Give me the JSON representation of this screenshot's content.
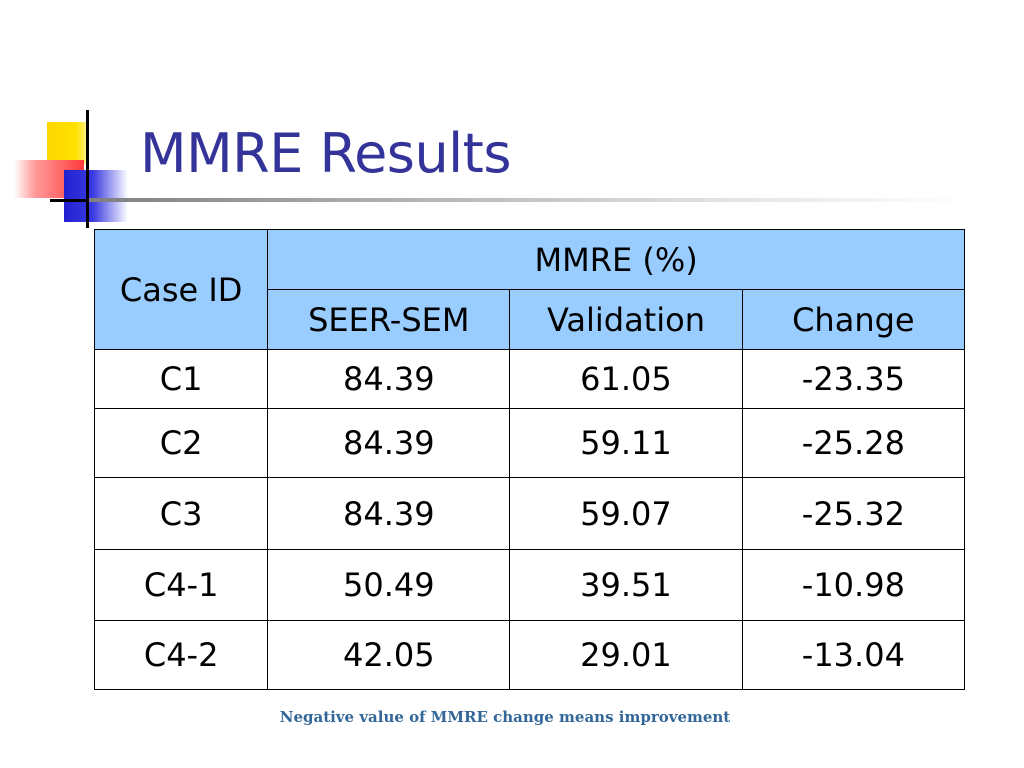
{
  "slide": {
    "title": "MMRE Results",
    "footnote": "Negative value of MMRE change means improvement"
  },
  "table": {
    "case_header": "Case ID",
    "group_header": "MMRE (%)",
    "columns": [
      "SEER-SEM",
      "Validation",
      "Change"
    ],
    "rows": [
      {
        "case": "C1",
        "seer_sem": "84.39",
        "validation": "61.05",
        "change": "-23.35"
      },
      {
        "case": "C2",
        "seer_sem": "84.39",
        "validation": "59.11",
        "change": "-25.28"
      },
      {
        "case": "C3",
        "seer_sem": "84.39",
        "validation": "59.07",
        "change": "-25.32"
      },
      {
        "case": "C4-1",
        "seer_sem": "50.49",
        "validation": "39.51",
        "change": "-10.98"
      },
      {
        "case": "C4-2",
        "seer_sem": "42.05",
        "validation": "29.01",
        "change": "-13.04"
      }
    ],
    "header_color": "#99ccff"
  },
  "theme": {
    "title_color": "#333399",
    "footnote_color": "#336699"
  }
}
